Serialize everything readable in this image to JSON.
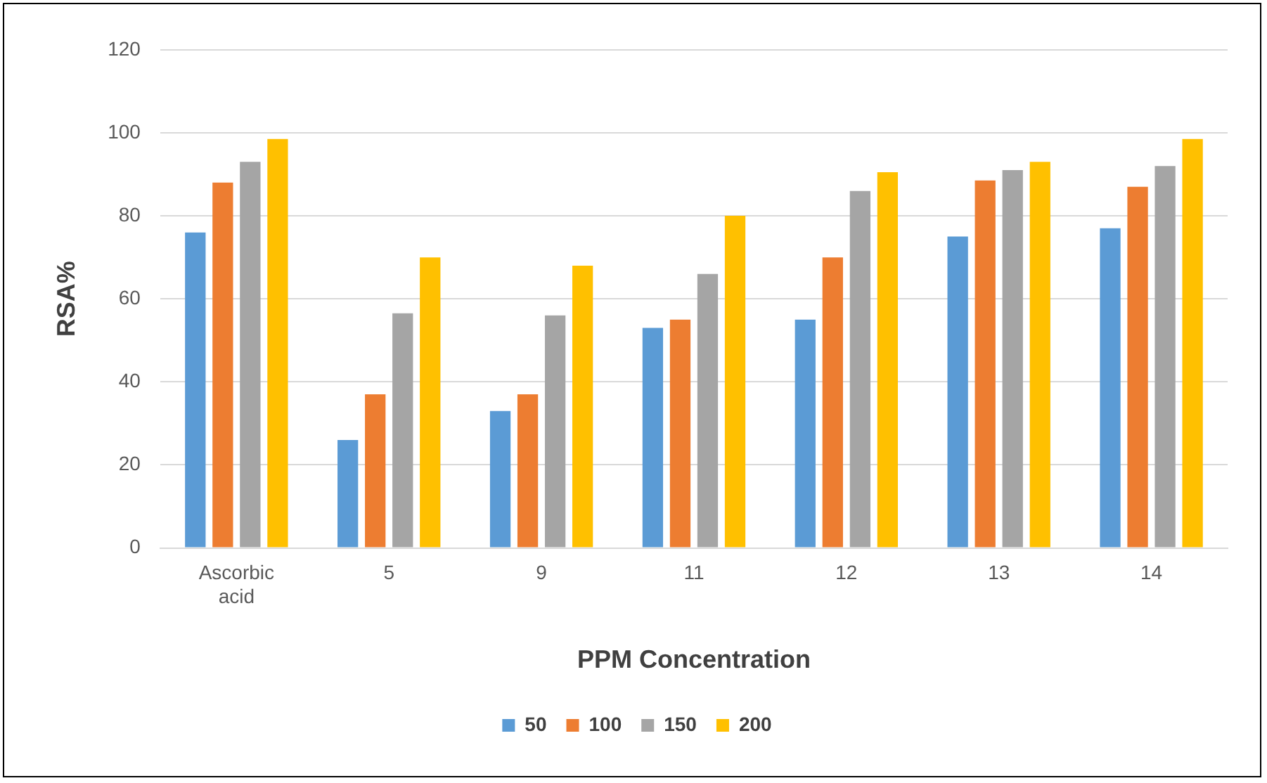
{
  "chart_data": {
    "type": "bar",
    "xlabel": "PPM Concentration",
    "ylabel": "RSA%",
    "categories": [
      "Ascorbic acid",
      "5",
      "9",
      "11",
      "12",
      "13",
      "14"
    ],
    "series": [
      {
        "name": "50",
        "color": "#5b9bd5",
        "values": [
          76,
          26,
          33,
          53,
          55,
          75,
          77
        ]
      },
      {
        "name": "100",
        "color": "#ed7d31",
        "values": [
          88,
          37,
          37,
          55,
          70,
          88.5,
          87
        ]
      },
      {
        "name": "150",
        "color": "#a5a5a5",
        "values": [
          93,
          56.5,
          56,
          66,
          86,
          91,
          92
        ]
      },
      {
        "name": "200",
        "color": "#ffc000",
        "values": [
          98.5,
          70,
          68,
          80,
          90.5,
          93,
          98.5
        ]
      }
    ],
    "ylim": [
      0,
      120
    ],
    "yticks": [
      0,
      20,
      40,
      60,
      80,
      100,
      120
    ],
    "grid": "y",
    "legend": "bottom"
  }
}
